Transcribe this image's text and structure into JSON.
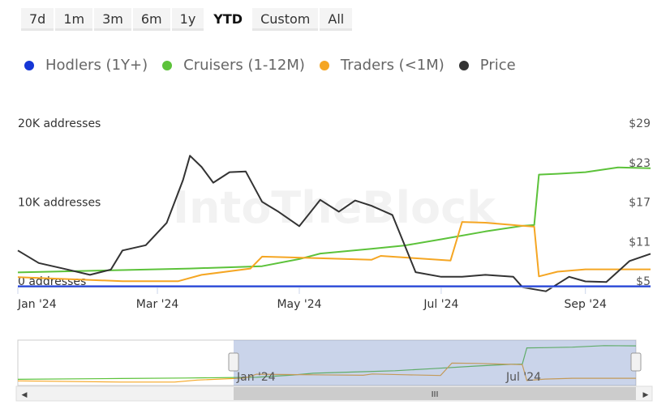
{
  "range_selector": {
    "buttons": [
      "7d",
      "1m",
      "3m",
      "6m",
      "1y",
      "YTD",
      "Custom",
      "All"
    ],
    "active": "YTD"
  },
  "legend": [
    {
      "label": "Hodlers (1Y+)",
      "color": "#1536d6"
    },
    {
      "label": "Cruisers (1-12M)",
      "color": "#5cc23a"
    },
    {
      "label": "Traders (<1M)",
      "color": "#f5a623"
    },
    {
      "label": "Price",
      "color": "#333333"
    }
  ],
  "watermark": "IntoTheBlock",
  "navigator": {
    "labels": [
      "Jan '24",
      "Jul '24"
    ],
    "scroll_grip": "III"
  },
  "chart_data": {
    "type": "line",
    "x_ticks": [
      "Jan '24",
      "Mar '24",
      "May '24",
      "Jul '24",
      "Sep '24"
    ],
    "x_range": [
      "2024-01-01",
      "2024-09-29"
    ],
    "y_left": {
      "labels": [
        "0 addresses",
        "10K addresses",
        "20K addresses"
      ],
      "ticks": [
        0,
        10000,
        20000
      ],
      "range": [
        0,
        20000
      ]
    },
    "y_right": {
      "labels": [
        "$5",
        "$11",
        "$17",
        "$23",
        "$29"
      ],
      "ticks": [
        5,
        11,
        17,
        23,
        29
      ],
      "range": [
        5,
        29
      ]
    },
    "grid": false,
    "legend_position": "top-left",
    "series": [
      {
        "name": "Hodlers (1Y+)",
        "axis": "left",
        "color": "#1536d6",
        "points": [
          [
            "2024-01-01",
            50
          ],
          [
            "2024-09-29",
            50
          ]
        ]
      },
      {
        "name": "Cruisers (1-12M)",
        "axis": "left",
        "color": "#5cc23a",
        "points": [
          [
            "2024-01-01",
            1800
          ],
          [
            "2024-02-15",
            2100
          ],
          [
            "2024-03-15",
            2300
          ],
          [
            "2024-04-15",
            2600
          ],
          [
            "2024-05-01",
            3500
          ],
          [
            "2024-05-10",
            4200
          ],
          [
            "2024-06-01",
            4800
          ],
          [
            "2024-06-15",
            5200
          ],
          [
            "2024-07-01",
            6000
          ],
          [
            "2024-07-20",
            7000
          ],
          [
            "2024-08-05",
            7700
          ],
          [
            "2024-08-10",
            7800
          ],
          [
            "2024-08-12",
            14200
          ],
          [
            "2024-08-20",
            14300
          ],
          [
            "2024-09-01",
            14500
          ],
          [
            "2024-09-15",
            15100
          ],
          [
            "2024-09-29",
            15000
          ]
        ]
      },
      {
        "name": "Traders (<1M)",
        "axis": "left",
        "color": "#f5a623",
        "points": [
          [
            "2024-01-01",
            1200
          ],
          [
            "2024-02-15",
            700
          ],
          [
            "2024-03-10",
            700
          ],
          [
            "2024-03-20",
            1500
          ],
          [
            "2024-04-10",
            2300
          ],
          [
            "2024-04-15",
            3800
          ],
          [
            "2024-05-10",
            3600
          ],
          [
            "2024-06-01",
            3400
          ],
          [
            "2024-06-05",
            3900
          ],
          [
            "2024-06-20",
            3600
          ],
          [
            "2024-07-05",
            3300
          ],
          [
            "2024-07-10",
            8200
          ],
          [
            "2024-07-20",
            8100
          ],
          [
            "2024-08-01",
            7800
          ],
          [
            "2024-08-10",
            7600
          ],
          [
            "2024-08-12",
            1300
          ],
          [
            "2024-08-20",
            1900
          ],
          [
            "2024-09-01",
            2200
          ],
          [
            "2024-09-15",
            2200
          ],
          [
            "2024-09-29",
            2200
          ]
        ]
      },
      {
        "name": "Price",
        "axis": "right",
        "color": "#333333",
        "points": [
          [
            "2024-01-01",
            10.5
          ],
          [
            "2024-01-10",
            8.6
          ],
          [
            "2024-01-20",
            7.8
          ],
          [
            "2024-02-01",
            6.8
          ],
          [
            "2024-02-10",
            7.6
          ],
          [
            "2024-02-15",
            10.5
          ],
          [
            "2024-02-25",
            11.3
          ],
          [
            "2024-03-05",
            14.7
          ],
          [
            "2024-03-12",
            21.2
          ],
          [
            "2024-03-15",
            24.9
          ],
          [
            "2024-03-20",
            23.2
          ],
          [
            "2024-03-25",
            20.8
          ],
          [
            "2024-04-01",
            22.4
          ],
          [
            "2024-04-08",
            22.5
          ],
          [
            "2024-04-15",
            17.9
          ],
          [
            "2024-04-22",
            16.4
          ],
          [
            "2024-05-01",
            14.2
          ],
          [
            "2024-05-10",
            18.2
          ],
          [
            "2024-05-18",
            16.4
          ],
          [
            "2024-05-25",
            18.1
          ],
          [
            "2024-06-01",
            17.3
          ],
          [
            "2024-06-10",
            15.9
          ],
          [
            "2024-06-20",
            7.2
          ],
          [
            "2024-07-01",
            6.5
          ],
          [
            "2024-07-10",
            6.5
          ],
          [
            "2024-07-20",
            6.8
          ],
          [
            "2024-08-01",
            6.5
          ],
          [
            "2024-08-05",
            4.9
          ],
          [
            "2024-08-15",
            4.3
          ],
          [
            "2024-08-25",
            6.5
          ],
          [
            "2024-09-01",
            5.8
          ],
          [
            "2024-09-10",
            5.7
          ],
          [
            "2024-09-20",
            8.9
          ],
          [
            "2024-09-29",
            10.0
          ]
        ]
      }
    ]
  }
}
